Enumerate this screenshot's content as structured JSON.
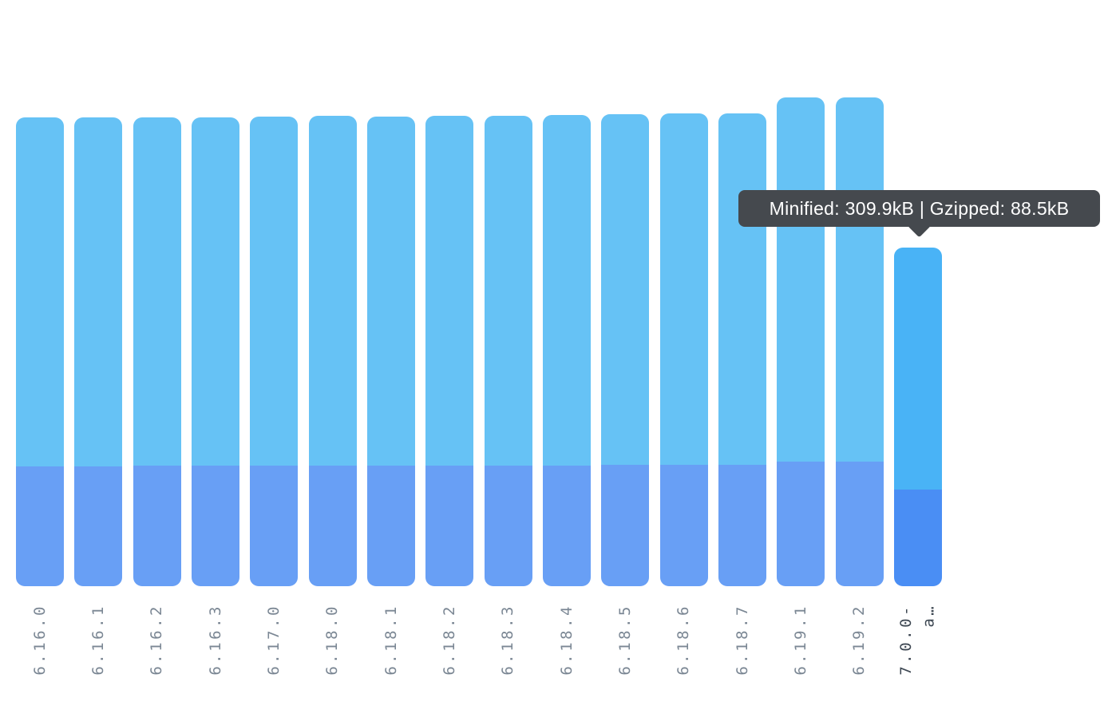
{
  "tooltip": {
    "text": "Minified: 309.9kB | Gzipped: 88.5kB"
  },
  "chart_data": {
    "type": "bar",
    "variant": "overlay",
    "description": "Bundle size per package version; full bar height = minified size, darker bottom segment = gzipped size",
    "unit": "kB",
    "categories": [
      "6.16.0",
      "6.16.1",
      "6.16.2",
      "6.16.3",
      "6.17.0",
      "6.18.0",
      "6.18.1",
      "6.18.2",
      "6.18.3",
      "6.18.4",
      "6.18.5",
      "6.18.6",
      "6.18.7",
      "6.19.1",
      "6.19.2",
      "7.0.0-a…"
    ],
    "display_labels": [
      "6.16.0",
      "6.16.1",
      "6.16.2",
      "6.16.3",
      "6.17.0",
      "6.18.0",
      "6.18.1",
      "6.18.2",
      "6.18.3",
      "6.18.4",
      "6.18.5",
      "6.18.6",
      "6.18.7",
      "6.19.1",
      "6.19.2",
      "7.0.0-\na…"
    ],
    "series": [
      {
        "name": "Minified",
        "values": [
          428.6,
          428.6,
          429.0,
          429.0,
          429.4,
          430.1,
          429.7,
          430.1,
          430.1,
          430.8,
          431.9,
          432.6,
          432.3,
          446.9,
          446.9,
          309.9
        ]
      },
      {
        "name": "Gzipped",
        "values": [
          109.9,
          109.9,
          110.0,
          110.0,
          110.1,
          110.3,
          110.2,
          110.3,
          110.3,
          110.5,
          110.7,
          110.9,
          110.8,
          113.6,
          113.6,
          88.5
        ]
      }
    ],
    "highlighted_index": 15,
    "highlighted_values": {
      "minified_kb": 309.9,
      "gzipped_kb": 88.5
    },
    "ylim": [
      0,
      447
    ],
    "grid": false,
    "legend": false,
    "axes_visible": false
  },
  "colors": {
    "minified": "#66c2f5",
    "gzipped": "#689ff5",
    "minified_active": "#49b3f6",
    "gzipped_active": "#4a8ef4",
    "tooltip_bg": "#45494e",
    "tooltip_text": "#ffffff",
    "label": "#7b8794",
    "label_active": "#3d4752",
    "background": "#ffffff"
  }
}
